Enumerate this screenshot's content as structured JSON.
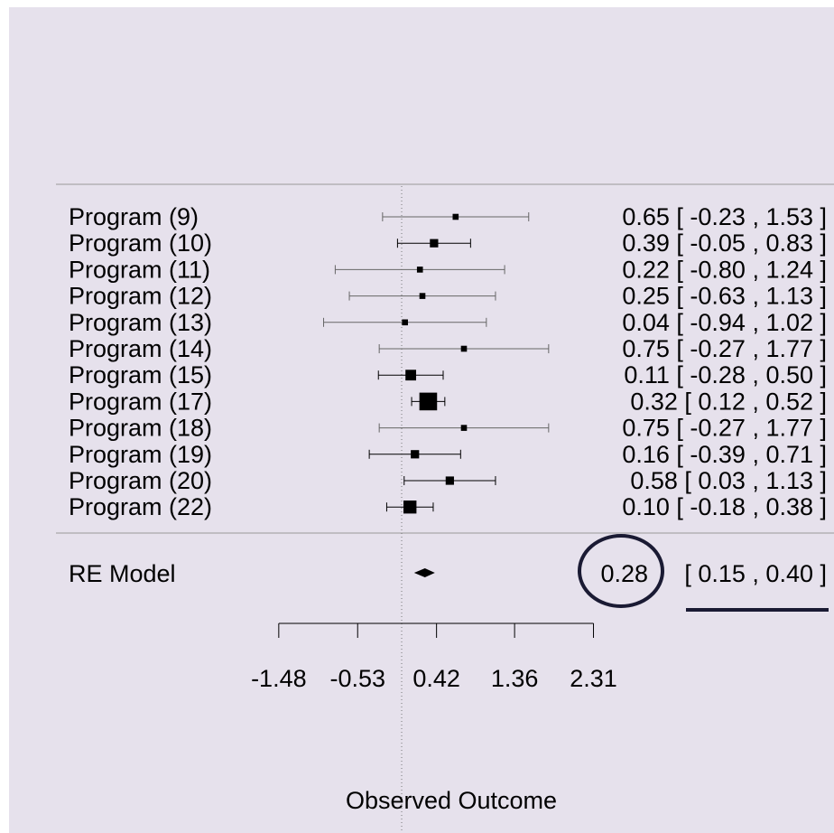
{
  "chart_data": {
    "type": "forest",
    "xlabel": "Observed Outcome",
    "x_ticks": [
      "-1.48",
      "-0.53",
      "0.42",
      "1.36",
      "2.31"
    ],
    "studies": [
      {
        "label": "Program (9)",
        "est": 0.65,
        "lo": -0.23,
        "hi": 1.53,
        "ci_text": "0.65 [ -0.23 , 1.53 ]",
        "weight": 1
      },
      {
        "label": "Program (10)",
        "est": 0.39,
        "lo": -0.05,
        "hi": 0.83,
        "ci_text": "0.39 [ -0.05 , 0.83 ]",
        "weight": 2
      },
      {
        "label": "Program (11)",
        "est": 0.22,
        "lo": -0.8,
        "hi": 1.24,
        "ci_text": "0.22 [ -0.80 , 1.24 ]",
        "weight": 1
      },
      {
        "label": "Program (12)",
        "est": 0.25,
        "lo": -0.63,
        "hi": 1.13,
        "ci_text": "0.25 [ -0.63 , 1.13 ]",
        "weight": 1
      },
      {
        "label": "Program (13)",
        "est": 0.04,
        "lo": -0.94,
        "hi": 1.02,
        "ci_text": "0.04 [ -0.94 , 1.02 ]",
        "weight": 1
      },
      {
        "label": "Program (14)",
        "est": 0.75,
        "lo": -0.27,
        "hi": 1.77,
        "ci_text": "0.75 [ -0.27 , 1.77 ]",
        "weight": 1
      },
      {
        "label": "Program (15)",
        "est": 0.11,
        "lo": -0.28,
        "hi": 0.5,
        "ci_text": "0.11 [ -0.28 , 0.50 ]",
        "weight": 3
      },
      {
        "label": "Program (17)",
        "est": 0.32,
        "lo": 0.12,
        "hi": 0.52,
        "ci_text": "0.32 [  0.12 , 0.52 ]",
        "weight": 6
      },
      {
        "label": "Program (18)",
        "est": 0.75,
        "lo": -0.27,
        "hi": 1.77,
        "ci_text": "0.75 [ -0.27 , 1.77 ]",
        "weight": 1
      },
      {
        "label": "Program (19)",
        "est": 0.16,
        "lo": -0.39,
        "hi": 0.71,
        "ci_text": "0.16 [ -0.39 , 0.71 ]",
        "weight": 2
      },
      {
        "label": "Program (20)",
        "est": 0.58,
        "lo": 0.03,
        "hi": 1.13,
        "ci_text": "0.58 [  0.03 , 1.13 ]",
        "weight": 2
      },
      {
        "label": "Program (22)",
        "est": 0.1,
        "lo": -0.18,
        "hi": 0.38,
        "ci_text": "0.10 [ -0.18 , 0.38 ]",
        "weight": 4
      }
    ],
    "summary": {
      "label": "RE Model",
      "est": 0.28,
      "lo": 0.15,
      "hi": 0.4,
      "est_text": "0.28",
      "ci_text": "[  0.15 , 0.40 ]"
    },
    "reference_line": 0,
    "annotations": [
      "circle around summary estimate",
      "underline below summary CI"
    ],
    "colors": {
      "background": "#e6e1ec",
      "annotation": "#1a1a33",
      "rule": "#999999"
    }
  }
}
